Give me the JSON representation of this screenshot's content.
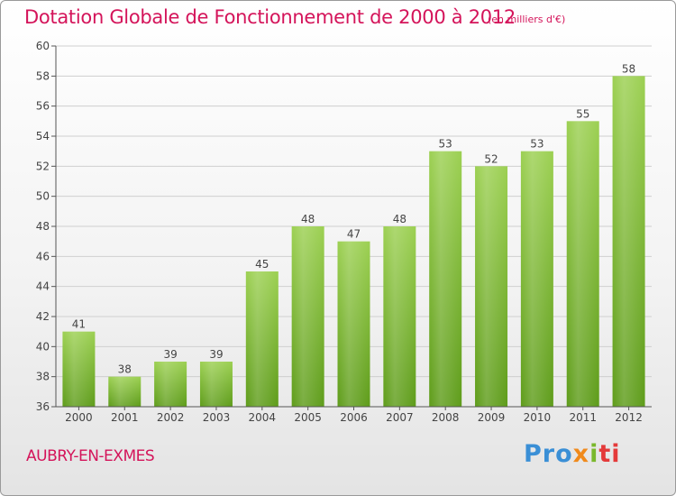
{
  "header": {
    "title": "Dotation Globale de Fonctionnement de 2000 à 2012",
    "subtitle": "(en milliers d'€)"
  },
  "footer": {
    "commune": "AUBRY-EN-EXMES",
    "logo_parts": [
      "Pro",
      "x",
      "i",
      "ti"
    ]
  },
  "colors": {
    "title": "#d4145a",
    "bar_top": "#9cd052",
    "bar_bottom": "#5e9c1a",
    "grid": "#cfcfcf",
    "axis": "#555555"
  },
  "chart_data": {
    "type": "bar",
    "title": "Dotation Globale de Fonctionnement de 2000 à 2012",
    "subtitle": "(en milliers d'€)",
    "xlabel": "",
    "ylabel": "",
    "categories": [
      "2000",
      "2001",
      "2002",
      "2003",
      "2004",
      "2005",
      "2006",
      "2007",
      "2008",
      "2009",
      "2010",
      "2011",
      "2012"
    ],
    "values": [
      41,
      38,
      39,
      39,
      45,
      48,
      47,
      48,
      53,
      52,
      53,
      55,
      58
    ],
    "data_labels": [
      "41",
      "38",
      "39",
      "39",
      "45",
      "48",
      "47",
      "48",
      "53",
      "52",
      "53",
      "55",
      "58"
    ],
    "ylim": [
      36,
      60
    ],
    "yticks": [
      "36",
      "38",
      "40",
      "42",
      "44",
      "46",
      "48",
      "50",
      "52",
      "54",
      "56",
      "58",
      "60"
    ],
    "grid": true,
    "legend": "none"
  }
}
